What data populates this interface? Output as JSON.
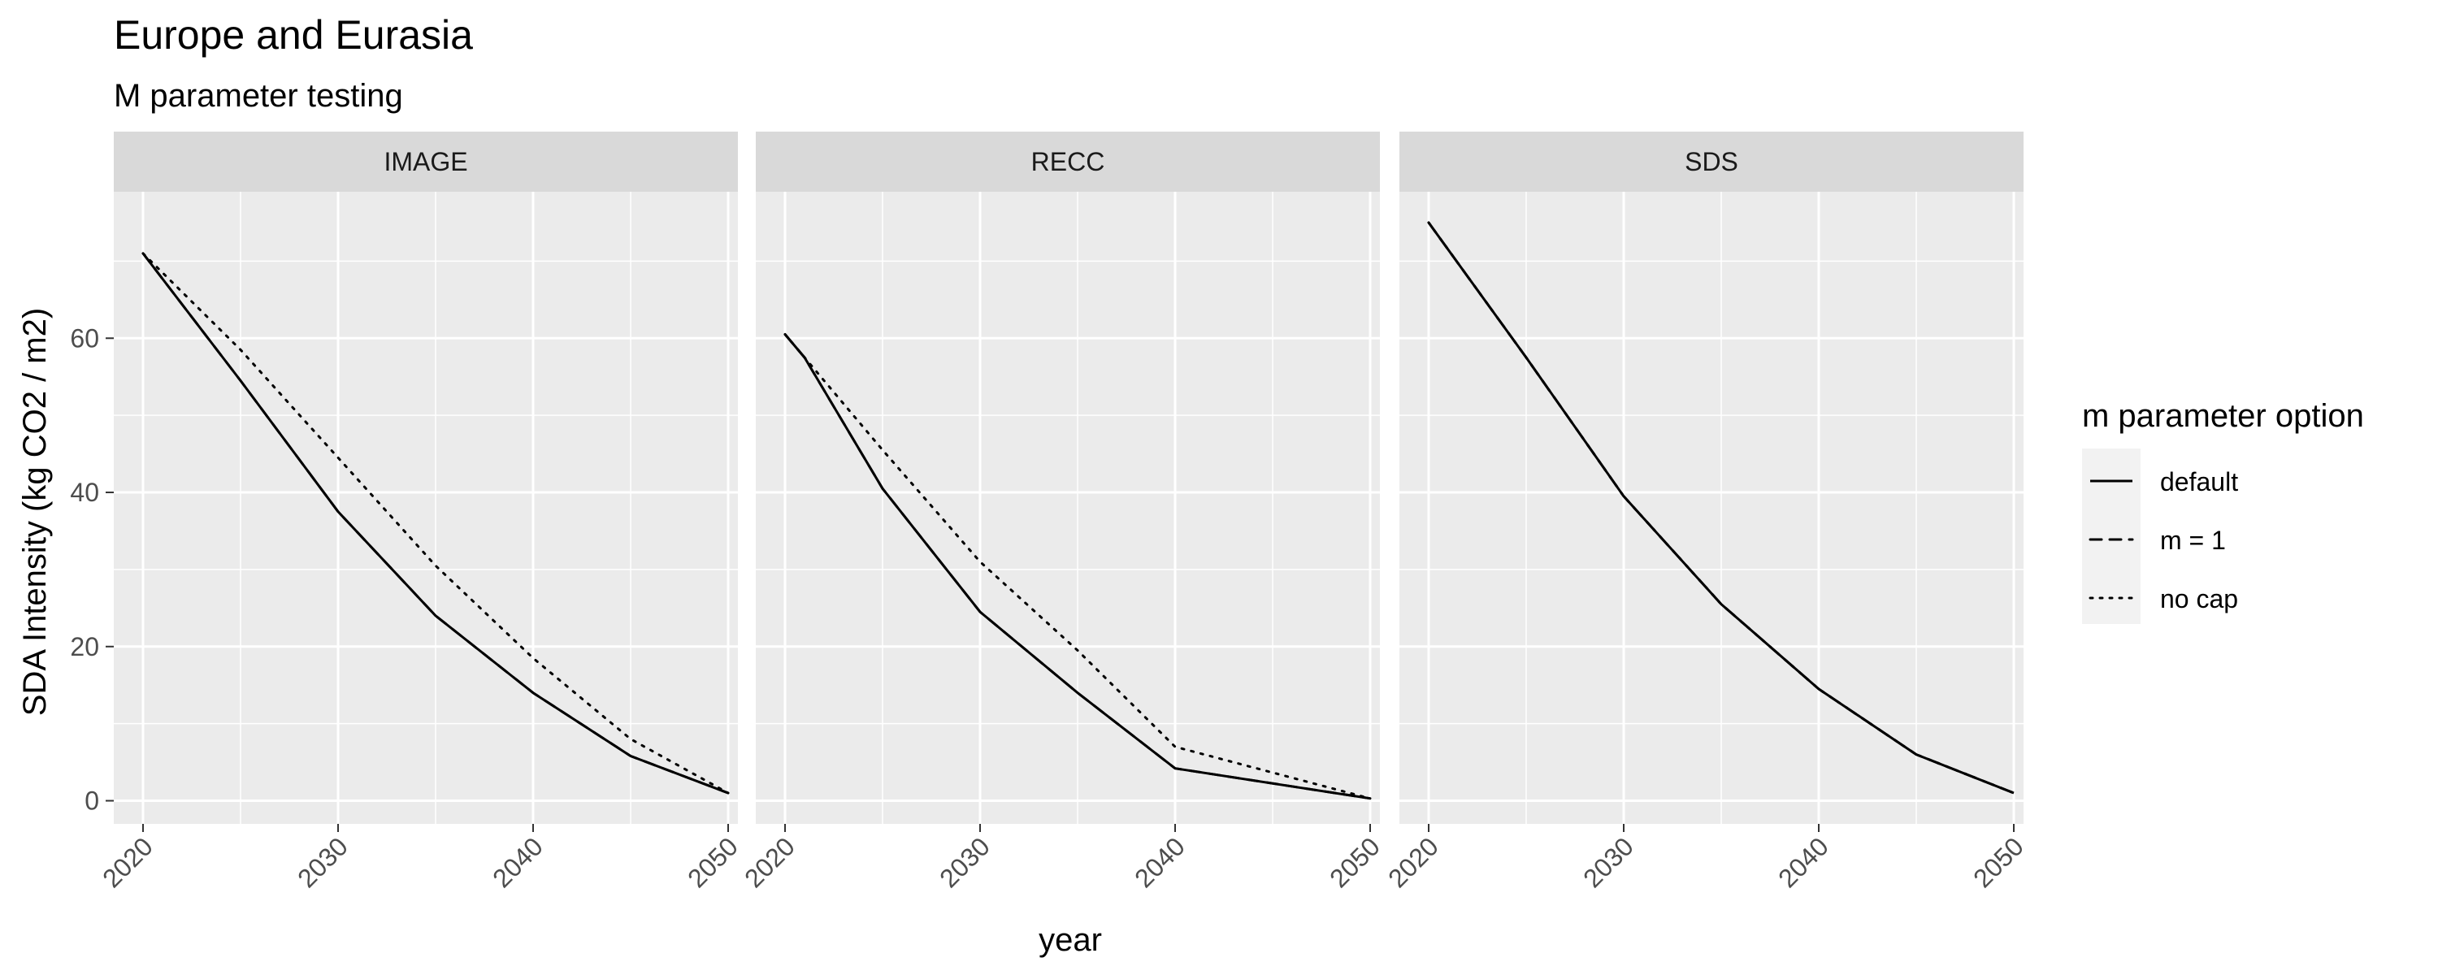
{
  "chart_data": {
    "type": "line",
    "title": "Europe and Eurasia",
    "subtitle": "M parameter testing",
    "xlabel": "year",
    "ylabel": "SDA Intensity (kg CO2 / m2)",
    "xlim": [
      2018.5,
      2050.5
    ],
    "ylim": [
      -3,
      79
    ],
    "x_ticks": [
      2020,
      2030,
      2040,
      2050
    ],
    "x_tick_labels": [
      "2020",
      "2030",
      "2040",
      "2050"
    ],
    "y_ticks": [
      0,
      20,
      40,
      60
    ],
    "y_tick_labels": [
      "0",
      "20",
      "40",
      "60"
    ],
    "grid": true,
    "legend": {
      "title": "m parameter option",
      "position": "right",
      "entries": [
        {
          "label": "default",
          "linetype": "solid"
        },
        {
          "label": "m = 1",
          "linetype": "dashed"
        },
        {
          "label": "no cap",
          "linetype": "dotted"
        }
      ]
    },
    "panels": [
      {
        "name": "IMAGE",
        "series": [
          {
            "name": "default",
            "linetype": "solid",
            "x": [
              2020,
              2025,
              2030,
              2035,
              2040,
              2045,
              2050
            ],
            "y": [
              71,
              54.5,
              37.5,
              24,
              14,
              5.8,
              1.0
            ]
          },
          {
            "name": "m = 1",
            "linetype": "dashed",
            "x": [
              2020,
              2025,
              2030,
              2035,
              2040,
              2045,
              2050
            ],
            "y": [
              71,
              54.5,
              37.5,
              24,
              14,
              5.8,
              1.0
            ]
          },
          {
            "name": "no cap",
            "linetype": "dotted",
            "x": [
              2020,
              2025,
              2030,
              2035,
              2040,
              2045,
              2050
            ],
            "y": [
              71,
              58.5,
              44.5,
              30.5,
              18.5,
              8.0,
              1.0
            ]
          }
        ]
      },
      {
        "name": "RECC",
        "series": [
          {
            "name": "default",
            "linetype": "solid",
            "x": [
              2020,
              2021,
              2025,
              2030,
              2035,
              2040,
              2050
            ],
            "y": [
              60.5,
              57.5,
              40.5,
              24.5,
              14.0,
              4.2,
              0.3
            ]
          },
          {
            "name": "m = 1",
            "linetype": "dashed",
            "x": [
              2020,
              2021,
              2025,
              2030,
              2035,
              2040,
              2050
            ],
            "y": [
              60.5,
              57.5,
              40.5,
              24.5,
              14.0,
              4.2,
              0.3
            ]
          },
          {
            "name": "no cap",
            "linetype": "dotted",
            "x": [
              2020,
              2025,
              2030,
              2035,
              2040,
              2050
            ],
            "y": [
              60.5,
              45.5,
              31.0,
              19.5,
              7.0,
              0.3
            ]
          }
        ]
      },
      {
        "name": "SDS",
        "series": [
          {
            "name": "default",
            "linetype": "solid",
            "x": [
              2020,
              2025,
              2030,
              2035,
              2040,
              2045,
              2050
            ],
            "y": [
              75,
              57.5,
              39.5,
              25.5,
              14.5,
              6.0,
              1.0
            ]
          },
          {
            "name": "m = 1",
            "linetype": "dashed",
            "x": [
              2020,
              2025,
              2030,
              2035,
              2040,
              2045,
              2050
            ],
            "y": [
              75,
              57.5,
              39.5,
              25.5,
              14.5,
              6.0,
              1.0
            ]
          },
          {
            "name": "no cap",
            "linetype": "dotted",
            "x": [
              2020,
              2025,
              2030,
              2035,
              2040,
              2045,
              2050
            ],
            "y": [
              75,
              57.5,
              39.5,
              25.5,
              14.5,
              6.0,
              1.0
            ]
          }
        ]
      }
    ]
  }
}
